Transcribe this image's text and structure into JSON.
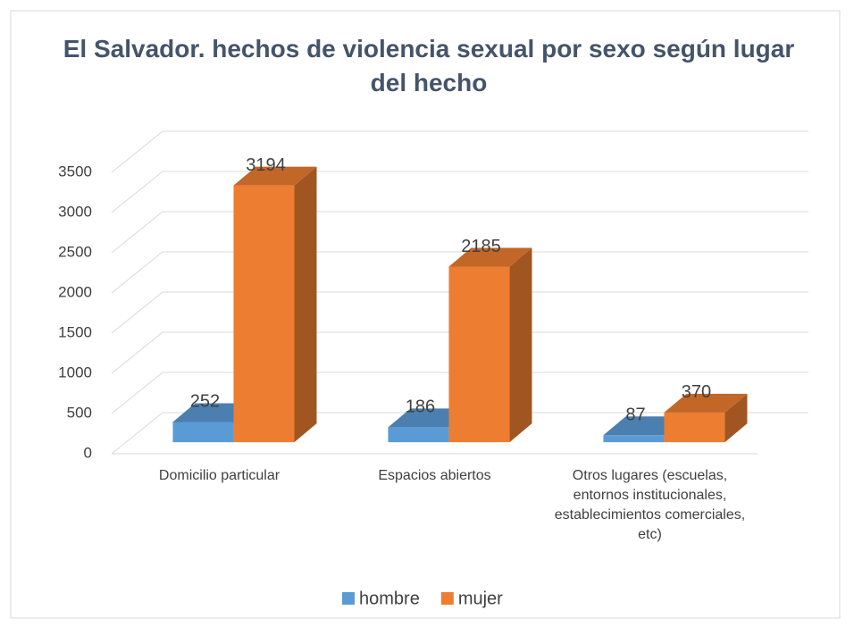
{
  "chart_data": {
    "type": "bar3d",
    "title": "El Salvador. hechos de violencia sexual por sexo según lugar del hecho",
    "categories": [
      "Domicilio particular",
      "Espacios abiertos",
      "Otros lugares (escuelas, entornos institucionales, establecimientos comerciales, etc)"
    ],
    "series": [
      {
        "name": "hombre",
        "color": "#5b9bd5",
        "values": [
          252,
          186,
          87
        ]
      },
      {
        "name": "mujer",
        "color": "#ed7d31",
        "values": [
          3194,
          2185,
          370
        ]
      }
    ],
    "ylim": [
      0,
      3500
    ],
    "yticks": [
      0,
      500,
      1000,
      1500,
      2000,
      2500,
      3000,
      3500
    ],
    "grid": true,
    "legend": "bottom"
  }
}
